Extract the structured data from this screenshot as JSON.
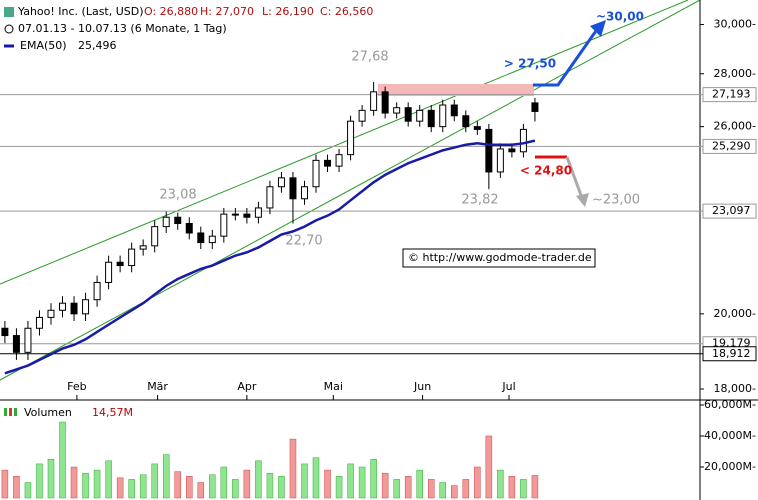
{
  "chart_data": {
    "type": "candlestick",
    "title": "Yahoo! Inc. (Last, USD)",
    "header_values": [
      "O: 26,880",
      "H: 27,070",
      "L: 26,190",
      "C: 26,560"
    ],
    "period": "07.01.13 - 10.07.13 (6 Monate, 1 Tag)",
    "log_scale": true,
    "x": [
      0,
      4,
      8,
      12,
      16,
      20,
      24,
      28,
      32,
      36,
      40,
      44,
      48,
      52,
      56,
      60,
      64,
      68,
      72,
      76,
      80,
      84,
      88,
      92,
      96,
      100,
      104,
      108,
      112,
      116,
      120,
      124,
      128,
      132,
      136,
      140,
      144,
      148,
      152,
      156,
      160,
      164,
      168,
      172,
      176,
      180,
      184
    ],
    "xlim": [
      -1.7,
      241.3
    ],
    "xticks": [
      {
        "value": 25,
        "label": "Feb"
      },
      {
        "value": 53,
        "label": "Mär"
      },
      {
        "value": 84,
        "label": "Apr"
      },
      {
        "value": 114,
        "label": "Mai"
      },
      {
        "value": 145,
        "label": "Jun"
      },
      {
        "value": 175,
        "label": "Jul"
      }
    ],
    "ylim": [
      17.725,
      31.05
    ],
    "yticks": [
      {
        "value": 18,
        "label": "18,000-"
      },
      {
        "value": 20,
        "label": "20,000-"
      },
      {
        "value": 26,
        "label": "26,000-"
      },
      {
        "value": 28,
        "label": "28,000-"
      },
      {
        "value": 30,
        "label": "30,000-"
      }
    ],
    "open": [
      19.6,
      19.4,
      18.95,
      19.6,
      19.9,
      20.1,
      20.3,
      20.0,
      20.4,
      20.9,
      21.5,
      21.4,
      21.9,
      22.0,
      22.6,
      22.9,
      22.7,
      22.4,
      22.1,
      22.3,
      23.0,
      23.0,
      22.9,
      23.2,
      23.9,
      24.2,
      23.5,
      23.9,
      24.8,
      24.6,
      25.0,
      26.2,
      26.6,
      27.3,
      26.5,
      26.7,
      26.2,
      26.6,
      26.0,
      26.8,
      26.4,
      26.0,
      25.9,
      24.4,
      25.2,
      25.1,
      26.88
    ],
    "high": [
      19.8,
      19.6,
      19.8,
      20.1,
      20.3,
      20.5,
      20.5,
      20.6,
      21.1,
      21.7,
      21.7,
      22.1,
      22.2,
      22.8,
      23.08,
      23.05,
      22.9,
      22.6,
      22.5,
      23.2,
      23.2,
      23.2,
      23.4,
      24.1,
      24.4,
      24.4,
      24.1,
      25.0,
      25.0,
      25.2,
      26.4,
      26.8,
      27.68,
      27.5,
      26.9,
      26.9,
      26.8,
      26.8,
      27.0,
      27.0,
      26.6,
      26.2,
      26.1,
      25.4,
      25.4,
      26.1,
      27.07
    ],
    "low": [
      19.2,
      18.75,
      18.75,
      19.4,
      19.7,
      19.9,
      19.8,
      19.8,
      20.2,
      20.7,
      21.2,
      21.2,
      21.7,
      21.8,
      22.4,
      22.5,
      22.2,
      21.9,
      21.9,
      22.1,
      22.8,
      22.7,
      22.7,
      23.0,
      23.7,
      22.7,
      23.3,
      23.7,
      24.4,
      24.4,
      24.8,
      26.0,
      26.4,
      26.3,
      26.3,
      26.0,
      26.0,
      25.8,
      25.8,
      26.2,
      25.8,
      25.7,
      23.82,
      24.2,
      24.9,
      24.9,
      26.19
    ],
    "close": [
      19.4,
      18.95,
      19.6,
      19.9,
      20.1,
      20.3,
      20.0,
      20.4,
      20.9,
      21.5,
      21.4,
      21.9,
      22.0,
      22.6,
      22.9,
      22.7,
      22.4,
      22.1,
      22.3,
      23.0,
      23.0,
      22.9,
      23.2,
      23.9,
      24.2,
      23.5,
      23.9,
      24.8,
      24.6,
      25.0,
      26.2,
      26.6,
      27.3,
      26.5,
      26.7,
      26.2,
      26.6,
      26.0,
      26.8,
      26.4,
      26.0,
      25.9,
      24.4,
      25.2,
      25.1,
      25.9,
      26.56
    ],
    "ema": {
      "name": "EMA(50)",
      "value_label": "25,496",
      "color": "#1a1aa8",
      "values": [
        18.4,
        18.5,
        18.6,
        18.75,
        18.9,
        19.05,
        19.15,
        19.3,
        19.5,
        19.7,
        19.9,
        20.1,
        20.3,
        20.55,
        20.8,
        21.0,
        21.15,
        21.3,
        21.4,
        21.55,
        21.7,
        21.8,
        21.95,
        22.15,
        22.35,
        22.45,
        22.6,
        22.8,
        22.95,
        23.15,
        23.45,
        23.75,
        24.05,
        24.3,
        24.5,
        24.7,
        24.85,
        25.0,
        25.15,
        25.25,
        25.35,
        25.4,
        25.35,
        25.35,
        25.35,
        25.4,
        25.496
      ]
    },
    "volume": {
      "name": "Volumen",
      "value_label": "14,57M",
      "up_color": "#8fe58f",
      "down_color": "#f29a9a",
      "values": [
        18,
        14,
        10,
        22,
        25,
        49,
        20,
        16,
        18,
        24,
        13,
        12,
        15,
        22,
        28,
        17,
        14,
        10,
        15,
        20,
        12,
        18,
        24,
        16,
        14,
        38,
        22,
        26,
        18,
        14,
        22,
        20,
        25,
        16,
        12,
        14,
        18,
        12,
        10,
        8,
        12,
        20,
        40,
        18,
        14,
        12,
        14.57
      ],
      "ylim": [
        0,
        60
      ],
      "yticks": [
        {
          "value": 20,
          "label": "20,000M-"
        },
        {
          "value": 40,
          "label": "40,000M-"
        },
        {
          "value": 60,
          "label": "60,000M-"
        }
      ]
    },
    "levels": [
      {
        "value": 27.193,
        "label": "27,193",
        "color": "#999999"
      },
      {
        "value": 25.29,
        "label": "25,290",
        "color": "#999999"
      },
      {
        "value": 23.097,
        "label": "23,097",
        "color": "#999999"
      },
      {
        "value": 19.179,
        "label": "19,179",
        "color": "#999999"
      },
      {
        "value": 18.912,
        "label": "18,912",
        "color": "#000000"
      }
    ],
    "annotations": [
      "27,68",
      "23,08",
      "22,70",
      "23,82",
      "> 27,50",
      "~30,00",
      "< 24,80",
      "~23,00"
    ],
    "credit": "© http://www.godmode-trader.de"
  }
}
